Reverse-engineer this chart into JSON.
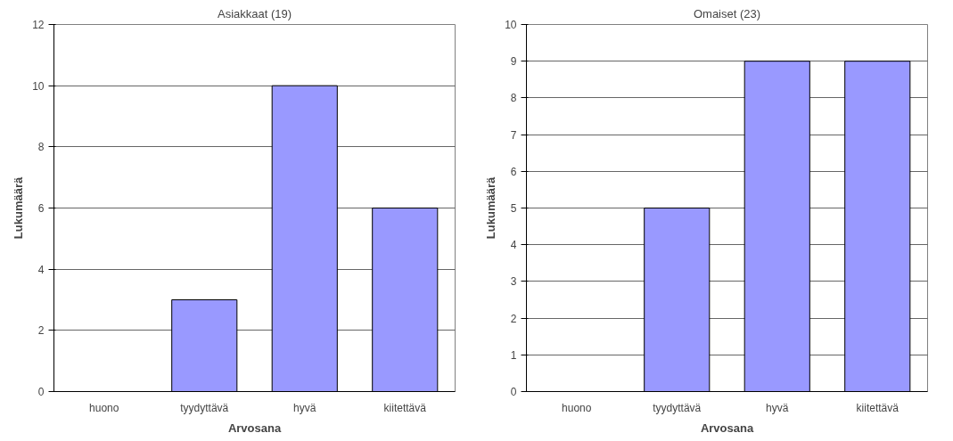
{
  "chart_data": [
    {
      "type": "bar",
      "title": "Asiakkaat (19)",
      "xlabel": "Arvosana",
      "ylabel": "Lukumäärä",
      "categories": [
        "huono",
        "tyydyttävä",
        "hyvä",
        "kiitettävä"
      ],
      "series": [
        {
          "color": "#9999ff",
          "values": [
            0,
            3,
            10,
            6
          ]
        }
      ],
      "ylim": [
        0,
        12
      ],
      "yticks": [
        0,
        2,
        4,
        6,
        8,
        10,
        12
      ],
      "grid": "y"
    },
    {
      "type": "bar",
      "title": "Omaiset (23)",
      "xlabel": "Arvosana",
      "ylabel": "Lukumäärä",
      "categories": [
        "huono",
        "tyydyttävä",
        "hyvä",
        "kiitettävä"
      ],
      "series": [
        {
          "color": "#9999ff",
          "values": [
            0,
            5,
            9,
            9
          ]
        }
      ],
      "ylim": [
        0,
        10
      ],
      "yticks": [
        0,
        1,
        2,
        3,
        4,
        5,
        6,
        7,
        8,
        9,
        10
      ],
      "grid": "y"
    }
  ]
}
